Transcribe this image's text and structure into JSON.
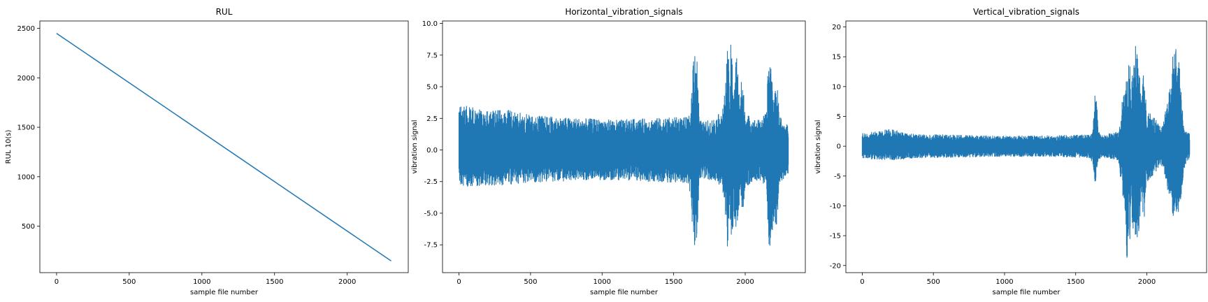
{
  "chart_data": [
    {
      "type": "line",
      "title": "RUL",
      "xlabel": "sample file number",
      "ylabel": "RUL 10(s)",
      "xlim": [
        -115,
        2420
      ],
      "ylim": [
        30,
        2575
      ],
      "xticks": [
        0,
        500,
        1000,
        1500,
        2000
      ],
      "yticks": [
        500,
        1000,
        1500,
        2000,
        2500
      ],
      "grid": false,
      "color": "#1f77b4",
      "series": [
        {
          "x": [
            0,
            2302
          ],
          "y": [
            2450,
            148
          ]
        }
      ]
    },
    {
      "type": "line",
      "title": "Horizontal_vibration_signals",
      "xlabel": "sample file number",
      "ylabel": "vibration signal",
      "xlim": [
        -115,
        2420
      ],
      "ylim": [
        -9.7,
        10.2
      ],
      "xticks": [
        0,
        500,
        1000,
        1500,
        2000
      ],
      "yticks": [
        -7.5,
        -5.0,
        -2.5,
        0.0,
        2.5,
        5.0,
        7.5,
        10.0
      ],
      "grid": false,
      "color": "#1f77b4",
      "envelope": {
        "x": [
          0,
          100,
          200,
          300,
          400,
          500,
          700,
          900,
          1100,
          1300,
          1500,
          1600,
          1620,
          1640,
          1660,
          1680,
          1700,
          1750,
          1800,
          1850,
          1870,
          1880,
          1890,
          1900,
          1920,
          1940,
          1960,
          1980,
          2000,
          2050,
          2100,
          2150,
          2160,
          2180,
          2200,
          2220,
          2240,
          2260,
          2280,
          2302
        ],
        "upper": [
          3.7,
          3.4,
          3.1,
          3.3,
          3.0,
          2.8,
          2.6,
          2.5,
          2.4,
          2.5,
          2.6,
          2.6,
          3.0,
          8.5,
          8.4,
          2.5,
          2.2,
          2.4,
          2.6,
          3.5,
          7.0,
          9.3,
          4.0,
          8.7,
          5.5,
          7.8,
          4.5,
          6.0,
          3.0,
          2.5,
          2.4,
          3.0,
          7.4,
          7.3,
          4.0,
          5.5,
          3.0,
          2.2,
          2.1,
          2.0
        ],
        "lower": [
          -3.0,
          -2.9,
          -2.8,
          -2.8,
          -2.7,
          -2.6,
          -2.5,
          -2.4,
          -2.4,
          -2.5,
          -2.6,
          -2.6,
          -4.0,
          -7.9,
          -7.7,
          -2.5,
          -2.3,
          -2.4,
          -2.6,
          -3.5,
          -6.5,
          -8.8,
          -4.0,
          -8.0,
          -5.5,
          -6.5,
          -4.5,
          -5.5,
          -3.0,
          -2.5,
          -2.4,
          -3.0,
          -7.8,
          -7.5,
          -5.5,
          -6.5,
          -3.0,
          -2.4,
          -2.2,
          -2.0
        ]
      }
    },
    {
      "type": "line",
      "title": "Vertical_vibration_signals",
      "xlabel": "sample file number",
      "ylabel": "vibration signal",
      "xlim": [
        -115,
        2420
      ],
      "ylim": [
        -21.2,
        21.0
      ],
      "xticks": [
        0,
        500,
        1000,
        1500,
        2000
      ],
      "yticks": [
        -20,
        -15,
        -10,
        -5,
        0,
        5,
        10,
        15,
        20
      ],
      "grid": false,
      "color": "#1f77b4",
      "envelope": {
        "x": [
          0,
          100,
          200,
          300,
          400,
          500,
          700,
          900,
          1100,
          1300,
          1500,
          1600,
          1620,
          1640,
          1660,
          1680,
          1700,
          1750,
          1800,
          1850,
          1860,
          1870,
          1880,
          1890,
          1900,
          1920,
          1940,
          1960,
          1980,
          2000,
          2050,
          2100,
          2150,
          2180,
          2200,
          2220,
          2240,
          2260,
          2280,
          2302
        ],
        "upper": [
          2.2,
          2.5,
          3.0,
          2.2,
          2.0,
          2.0,
          1.9,
          1.8,
          1.8,
          1.8,
          1.9,
          2.0,
          2.5,
          10.5,
          2.5,
          2.0,
          2.0,
          2.2,
          2.5,
          12.0,
          10.0,
          14.5,
          16.0,
          9.0,
          13.0,
          17.5,
          14.0,
          9.0,
          13.0,
          6.0,
          5.0,
          3.0,
          8.0,
          15.0,
          18.5,
          17.5,
          10.0,
          3.0,
          2.5,
          2.2
        ],
        "lower": [
          -2.0,
          -2.3,
          -2.4,
          -2.2,
          -2.0,
          -2.0,
          -1.9,
          -1.8,
          -1.8,
          -1.8,
          -1.9,
          -2.0,
          -3.0,
          -7.5,
          -2.5,
          -2.0,
          -2.0,
          -2.2,
          -2.5,
          -12.0,
          -20.3,
          -15.0,
          -17.0,
          -10.0,
          -14.0,
          -16.0,
          -15.0,
          -10.0,
          -13.0,
          -6.0,
          -5.0,
          -3.0,
          -8.0,
          -13.0,
          -12.0,
          -13.5,
          -9.0,
          -4.0,
          -3.0,
          -2.0
        ]
      }
    }
  ]
}
